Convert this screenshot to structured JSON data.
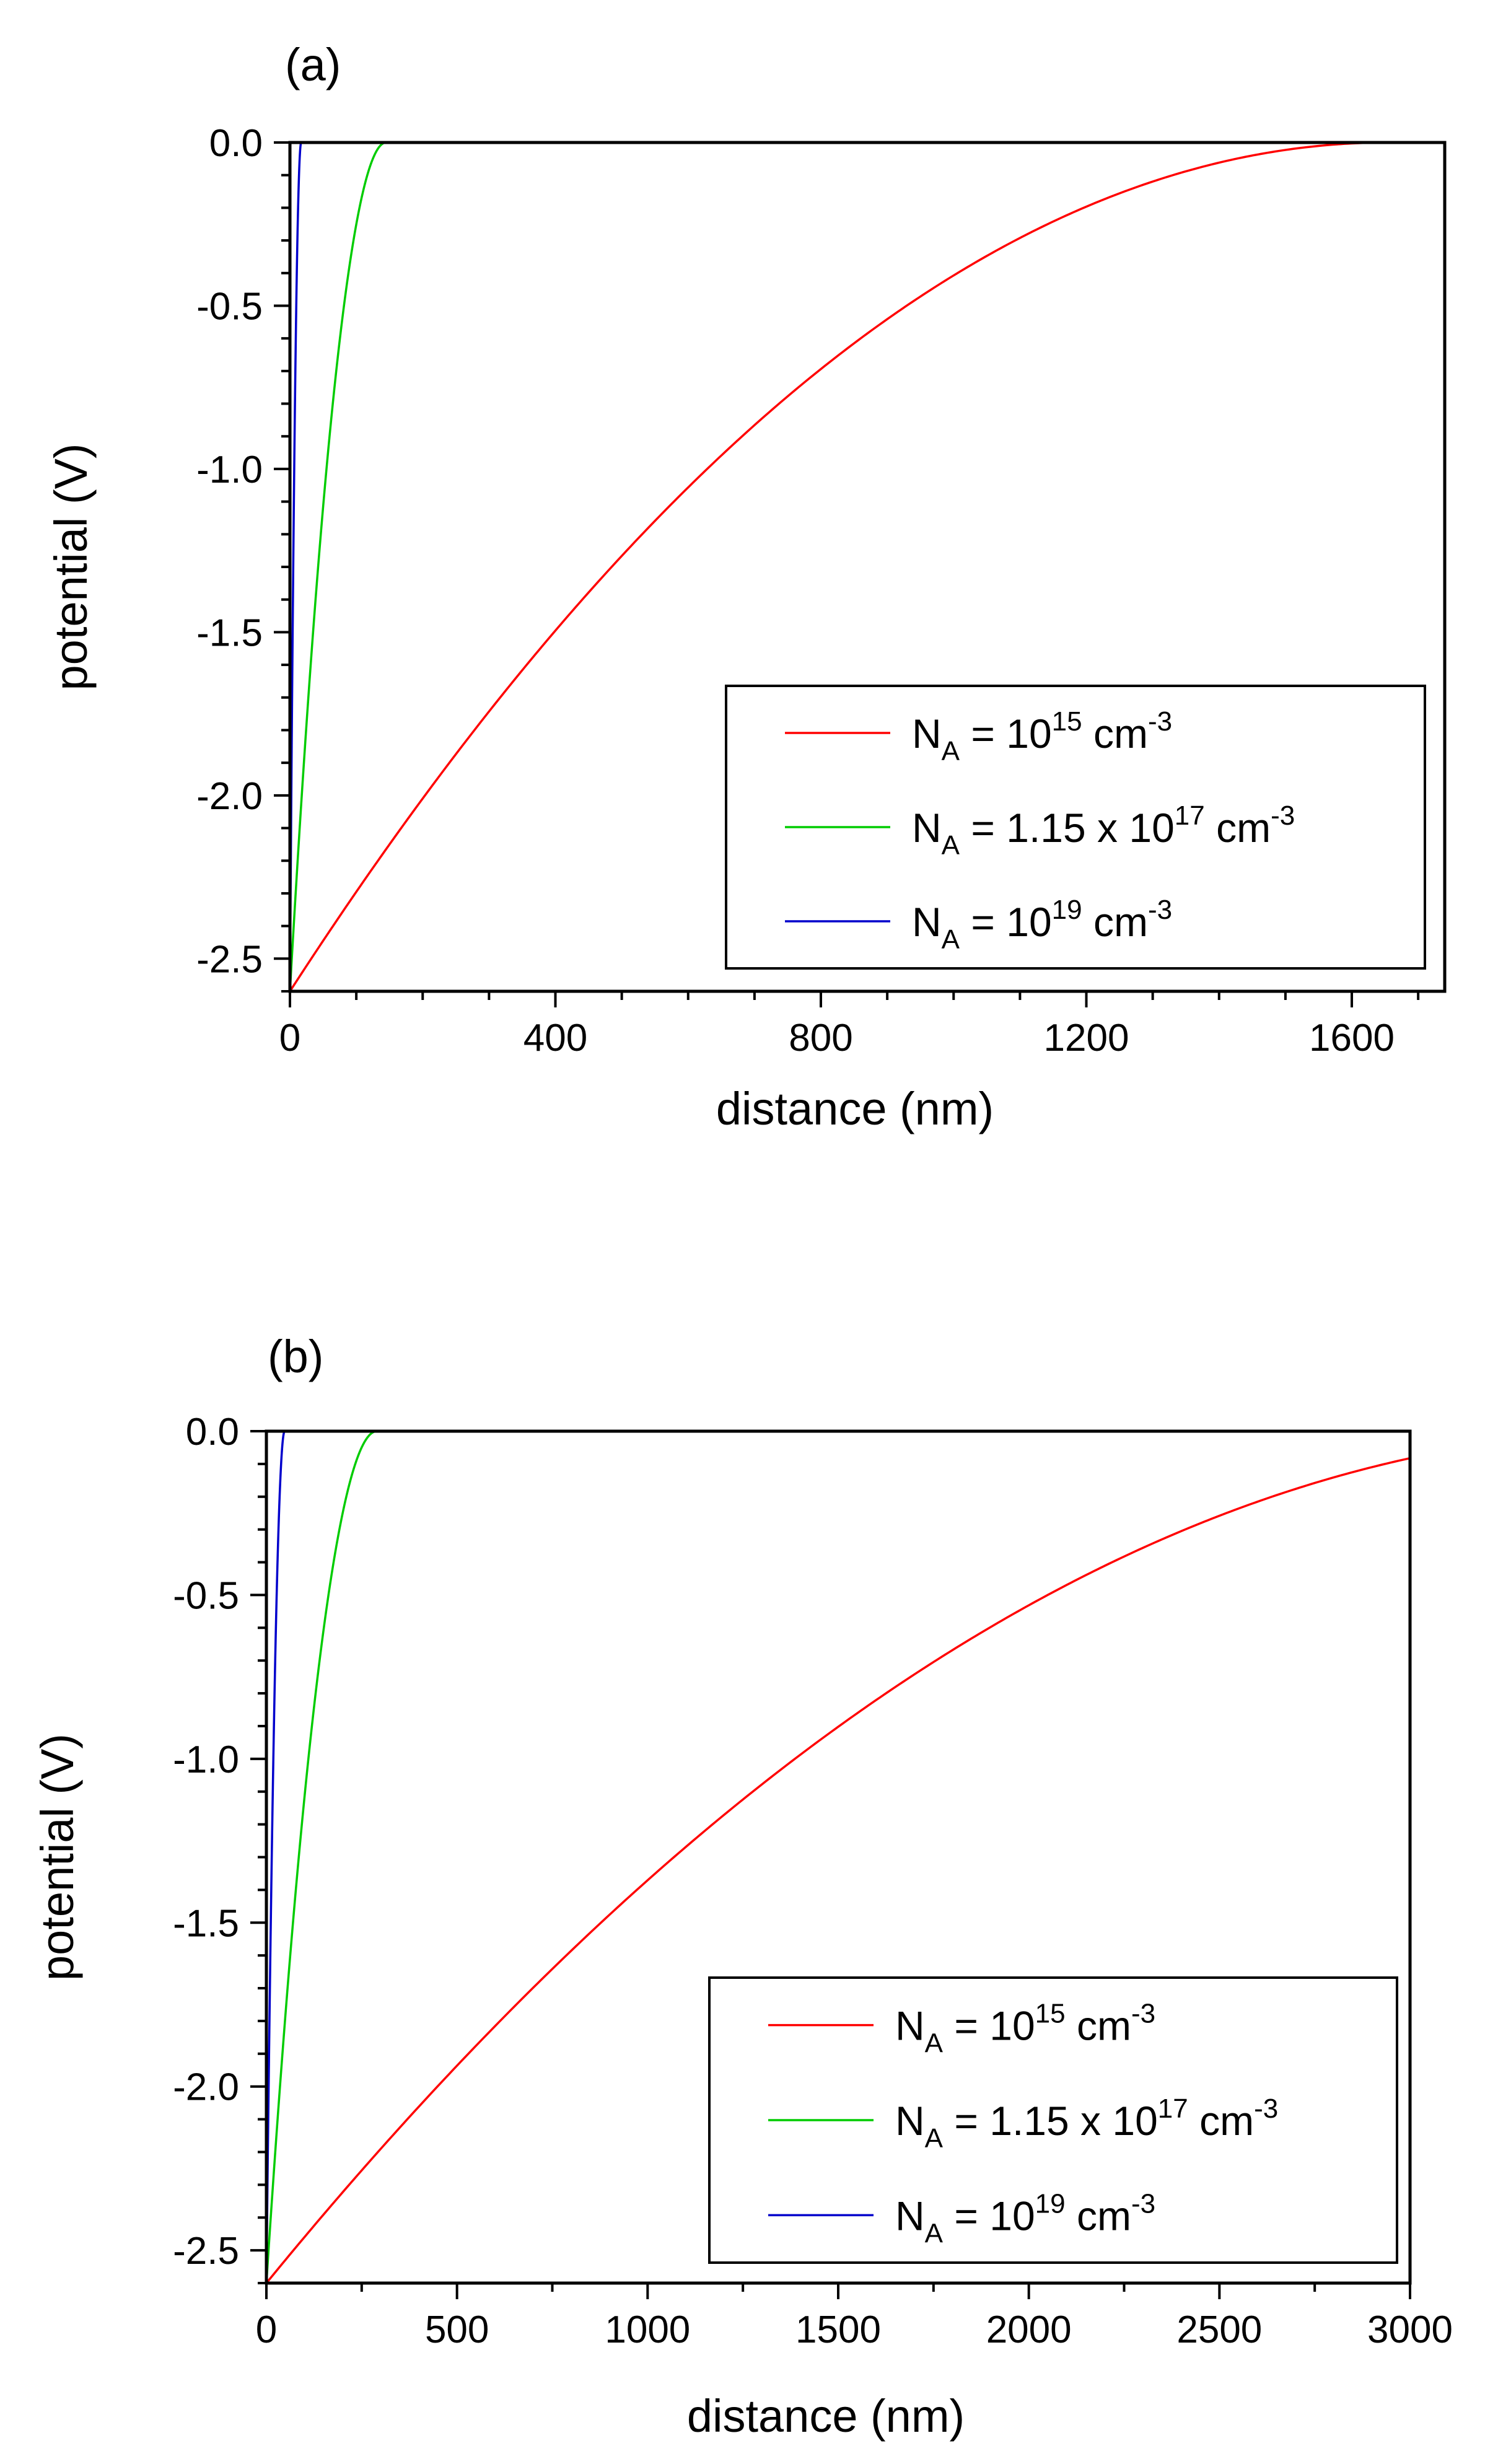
{
  "chart_data": [
    {
      "panel_label": "(a)",
      "type": "line",
      "xlabel": "distance (nm)",
      "ylabel": "potential (V)",
      "xlim": [
        0,
        1740
      ],
      "ylim": [
        -2.6,
        0.0
      ],
      "xticks": [
        0,
        400,
        800,
        1200,
        1600
      ],
      "xtick_labels": [
        "0",
        "400",
        "800",
        "1200",
        "1600"
      ],
      "x_minor_step": 100,
      "yticks": [
        0.0,
        -0.5,
        -1.0,
        -1.5,
        -2.0,
        -2.5
      ],
      "ytick_labels": [
        "0.0",
        "-0.5",
        "-1.0",
        "-1.5",
        "-2.0",
        "-2.5"
      ],
      "y_minor_step": 0.1,
      "legend_position": "lower-right",
      "series": [
        {
          "name": "N_A = 10^15 cm^-3",
          "label_parts": [
            "N",
            "A",
            " = 10",
            "15",
            " cm",
            "-3"
          ],
          "color": "#ff0000",
          "depletion_width": 1655,
          "v0": -2.6
        },
        {
          "name": "N_A = 1.15 x 10^17 cm^-3",
          "label_parts": [
            "N",
            "A",
            " = 1.15 x 10",
            "17",
            " cm",
            "-3"
          ],
          "color": "#00cc00",
          "depletion_width": 145,
          "v0": -2.6
        },
        {
          "name": "N_A = 10^19 cm^-3",
          "label_parts": [
            "N",
            "A",
            " = 10",
            "19",
            " cm",
            "-3"
          ],
          "color": "#0000cc",
          "depletion_width": 17,
          "v0": -2.6
        }
      ]
    },
    {
      "panel_label": "(b)",
      "type": "line",
      "xlabel": "distance (nm)",
      "ylabel": "potential (V)",
      "xlim": [
        0,
        3000
      ],
      "ylim": [
        -2.6,
        0.0
      ],
      "xticks": [
        0,
        500,
        1000,
        1500,
        2000,
        2500,
        3000
      ],
      "xtick_labels": [
        "0",
        "500",
        "1000",
        "1500",
        "2000",
        "2500",
        "3000"
      ],
      "x_minor_step": 250,
      "yticks": [
        0.0,
        -0.5,
        -1.0,
        -1.5,
        -2.0,
        -2.5
      ],
      "ytick_labels": [
        "0.0",
        "-0.5",
        "-1.0",
        "-1.5",
        "-2.0",
        "-2.5"
      ],
      "y_minor_step": 0.1,
      "legend_position": "lower-right",
      "series": [
        {
          "name": "N_A = 10^15 cm^-3",
          "label_parts": [
            "N",
            "A",
            " = 10",
            "15",
            " cm",
            "-3"
          ],
          "color": "#ff0000",
          "depletion_width": 3650,
          "v0": -2.6
        },
        {
          "name": "N_A = 1.15 x 10^17 cm^-3",
          "label_parts": [
            "N",
            "A",
            " = 1.15 x 10",
            "17",
            " cm",
            "-3"
          ],
          "color": "#00cc00",
          "depletion_width": 290,
          "v0": -2.6
        },
        {
          "name": "N_A = 10^19 cm^-3",
          "label_parts": [
            "N",
            "A",
            " = 10",
            "19",
            " cm",
            "-3"
          ],
          "color": "#0000cc",
          "depletion_width": 48,
          "v0": -2.6
        }
      ]
    }
  ]
}
